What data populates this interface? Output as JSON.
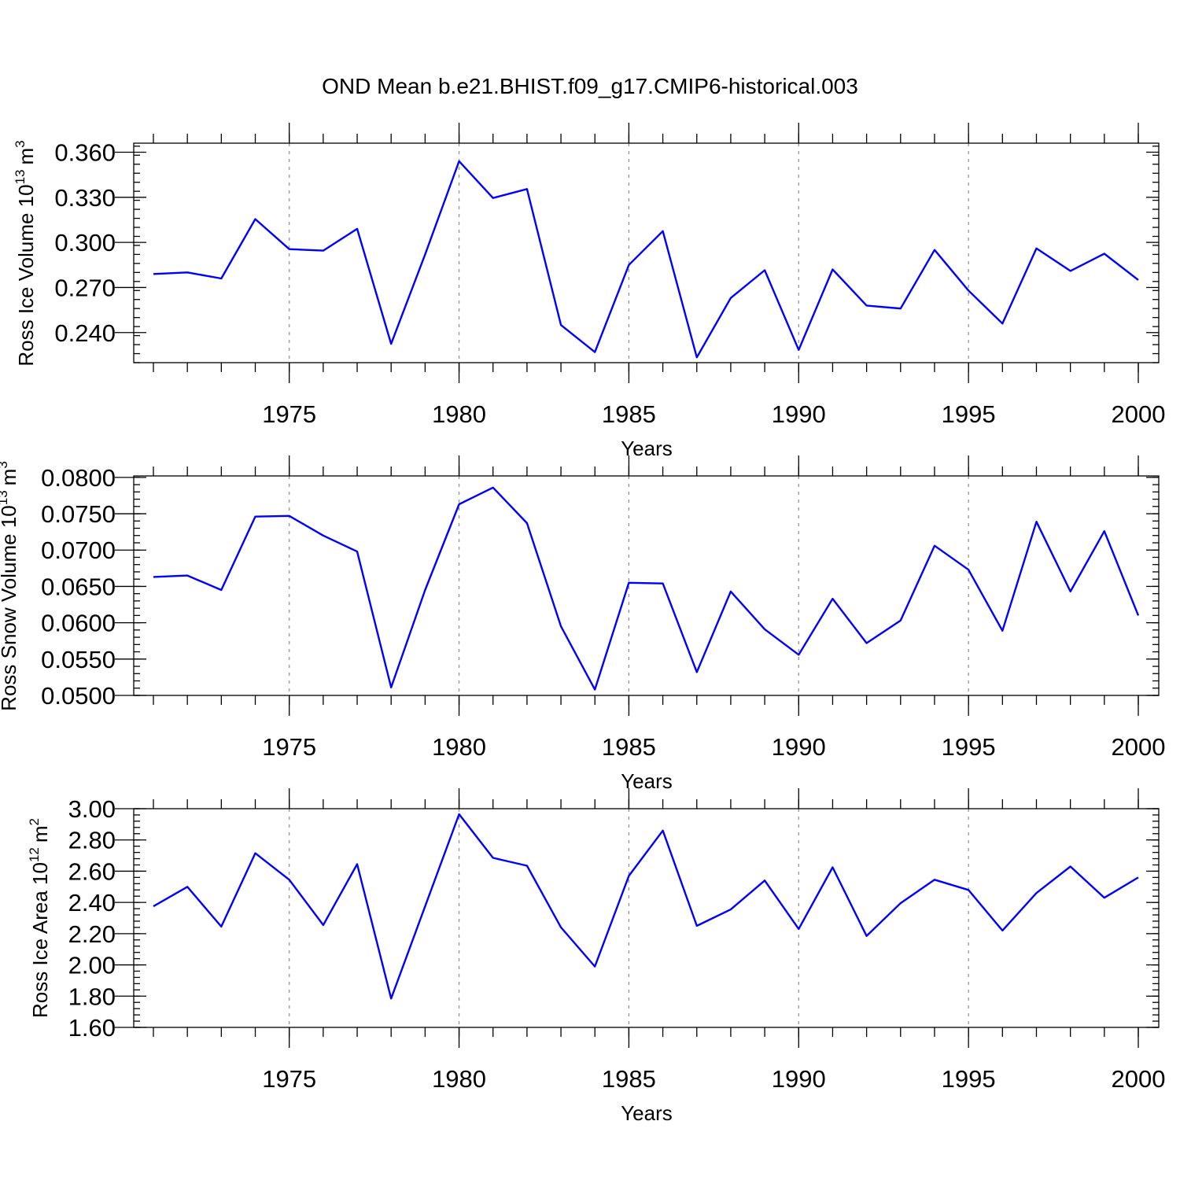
{
  "title": "OND Mean b.e21.BHIST.f09_g17.CMIP6-historical.003",
  "colors": {
    "series": "#0000ff",
    "grid": "#8c8c8c",
    "axis": "#000000"
  },
  "chart_data": [
    {
      "type": "line",
      "name": "ross-ice-volume",
      "ylabel_main": "Ross Ice Volume 10",
      "ylabel_exp": "13",
      "ylabel_unit": "m",
      "ylabel_unit_exp": "3",
      "xlabel": "Years",
      "xlim": [
        1971,
        2000
      ],
      "ylim": [
        0.22,
        0.366
      ],
      "y_ticks": [
        0.24,
        0.27,
        0.3,
        0.33,
        0.36
      ],
      "y_tick_labels": [
        "0.240",
        "0.270",
        "0.300",
        "0.330",
        "0.360"
      ],
      "y_minor_step": 0.006,
      "x_ticks": [
        1975,
        1980,
        1985,
        1990,
        1995,
        2000
      ],
      "x_tick_labels": [
        "1975",
        "1980",
        "1985",
        "1990",
        "1995",
        "2000"
      ],
      "grid_x": [
        1975,
        1980,
        1985,
        1990,
        1995
      ],
      "x": [
        1971,
        1972,
        1973,
        1974,
        1975,
        1976,
        1977,
        1978,
        1979,
        1980,
        1981,
        1982,
        1983,
        1984,
        1985,
        1986,
        1987,
        1988,
        1989,
        1990,
        1991,
        1992,
        1993,
        1994,
        1995,
        1996,
        1997,
        1998,
        1999,
        2000
      ],
      "values": [
        0.279,
        0.28,
        0.276,
        0.3155,
        0.2955,
        0.2945,
        0.309,
        0.2325,
        0.292,
        0.354,
        0.3295,
        0.3355,
        0.245,
        0.227,
        0.285,
        0.3075,
        0.2235,
        0.263,
        0.2815,
        0.2285,
        0.282,
        0.258,
        0.256,
        0.295,
        0.268,
        0.246,
        0.296,
        0.281,
        0.2925,
        0.275
      ]
    },
    {
      "type": "line",
      "name": "ross-snow-volume",
      "ylabel_main": "Ross Snow Volume 10",
      "ylabel_exp": "13",
      "ylabel_unit": "m",
      "ylabel_unit_exp": "3",
      "xlabel": "Years",
      "xlim": [
        1971,
        2000
      ],
      "ylim": [
        0.05,
        0.0802
      ],
      "y_ticks": [
        0.05,
        0.055,
        0.06,
        0.065,
        0.07,
        0.075,
        0.08
      ],
      "y_tick_labels": [
        "0.0500",
        "0.0550",
        "0.0600",
        "0.0650",
        "0.0700",
        "0.0750",
        "0.0800"
      ],
      "y_minor_step": 0.001,
      "x_ticks": [
        1975,
        1980,
        1985,
        1990,
        1995,
        2000
      ],
      "x_tick_labels": [
        "1975",
        "1980",
        "1985",
        "1990",
        "1995",
        "2000"
      ],
      "grid_x": [
        1975,
        1980,
        1985,
        1990,
        1995
      ],
      "x": [
        1971,
        1972,
        1973,
        1974,
        1975,
        1976,
        1977,
        1978,
        1979,
        1980,
        1981,
        1982,
        1983,
        1984,
        1985,
        1986,
        1987,
        1988,
        1989,
        1990,
        1991,
        1992,
        1993,
        1994,
        1995,
        1996,
        1997,
        1998,
        1999,
        2000
      ],
      "values": [
        0.0663,
        0.0665,
        0.0645,
        0.0746,
        0.0747,
        0.072,
        0.0698,
        0.0511,
        0.0645,
        0.0763,
        0.0786,
        0.0737,
        0.0595,
        0.0508,
        0.0655,
        0.0654,
        0.0532,
        0.0643,
        0.0591,
        0.0556,
        0.0633,
        0.0572,
        0.0603,
        0.0706,
        0.0673,
        0.0589,
        0.0739,
        0.0643,
        0.0726,
        0.061
      ]
    },
    {
      "type": "line",
      "name": "ross-ice-area",
      "ylabel_main": "Ross Ice Area 10",
      "ylabel_exp": "12",
      "ylabel_unit": "m",
      "ylabel_unit_exp": "2",
      "xlabel": "Years",
      "xlim": [
        1971,
        2000
      ],
      "ylim": [
        1.6,
        3.0
      ],
      "y_ticks": [
        1.6,
        1.8,
        2.0,
        2.2,
        2.4,
        2.6,
        2.8,
        3.0
      ],
      "y_tick_labels": [
        "1.60",
        "1.80",
        "2.00",
        "2.20",
        "2.40",
        "2.60",
        "2.80",
        "3.00"
      ],
      "y_minor_step": 0.04,
      "x_ticks": [
        1975,
        1980,
        1985,
        1990,
        1995,
        2000
      ],
      "x_tick_labels": [
        "1975",
        "1980",
        "1985",
        "1990",
        "1995",
        "2000"
      ],
      "grid_x": [
        1975,
        1980,
        1985,
        1990,
        1995
      ],
      "x": [
        1971,
        1972,
        1973,
        1974,
        1975,
        1976,
        1977,
        1978,
        1979,
        1980,
        1981,
        1982,
        1983,
        1984,
        1985,
        1986,
        1987,
        1988,
        1989,
        1990,
        1991,
        1992,
        1993,
        1994,
        1995,
        1996,
        1997,
        1998,
        1999,
        2000
      ],
      "values": [
        2.375,
        2.5,
        2.245,
        2.715,
        2.545,
        2.255,
        2.645,
        1.785,
        2.375,
        2.965,
        2.685,
        2.635,
        2.24,
        1.99,
        2.57,
        2.86,
        2.25,
        2.355,
        2.54,
        2.23,
        2.625,
        2.185,
        2.395,
        2.545,
        2.48,
        2.22,
        2.46,
        2.63,
        2.43,
        2.56
      ]
    }
  ]
}
